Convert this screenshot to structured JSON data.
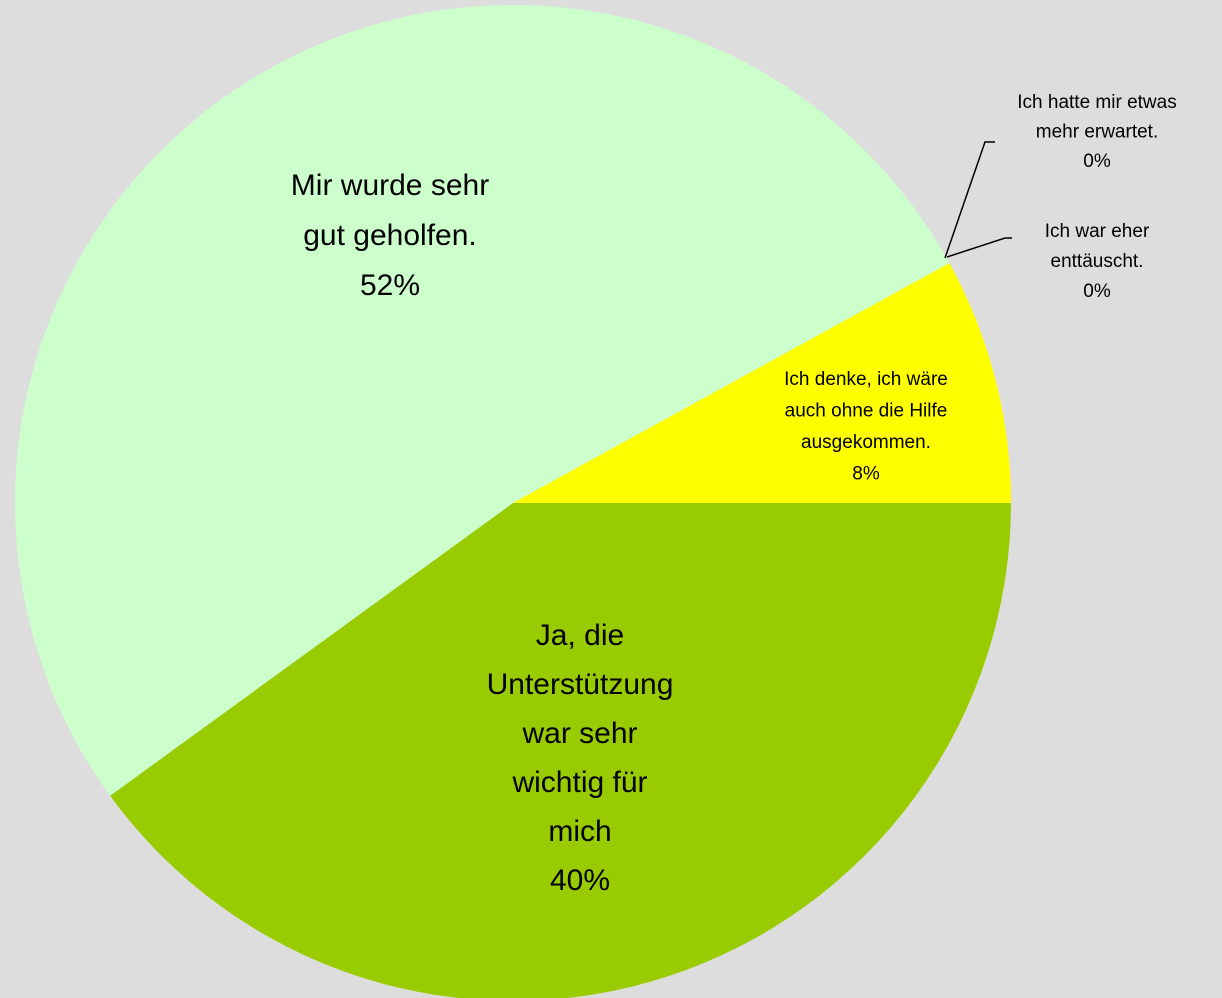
{
  "chart_data": {
    "type": "pie",
    "categories": [
      "Ja, die\nUnterstützung\nwar sehr\nwichtig für\nmich",
      "Mir wurde sehr\ngut geholfen.",
      "Ich hatte mir etwas\nmehr erwartet.",
      "Ich war eher\nenttäuscht.",
      "Ich denke, ich wäre\nauch ohne die Hilfe\nausgekommen."
    ],
    "values": [
      40,
      52,
      0,
      0,
      8
    ],
    "value_labels": [
      "40%",
      "52%",
      "0%",
      "0%",
      "8%"
    ],
    "colors": [
      "#99cc00",
      "#ccffcc",
      "#ffcc99",
      "#ff9900",
      "#ffff00"
    ]
  }
}
